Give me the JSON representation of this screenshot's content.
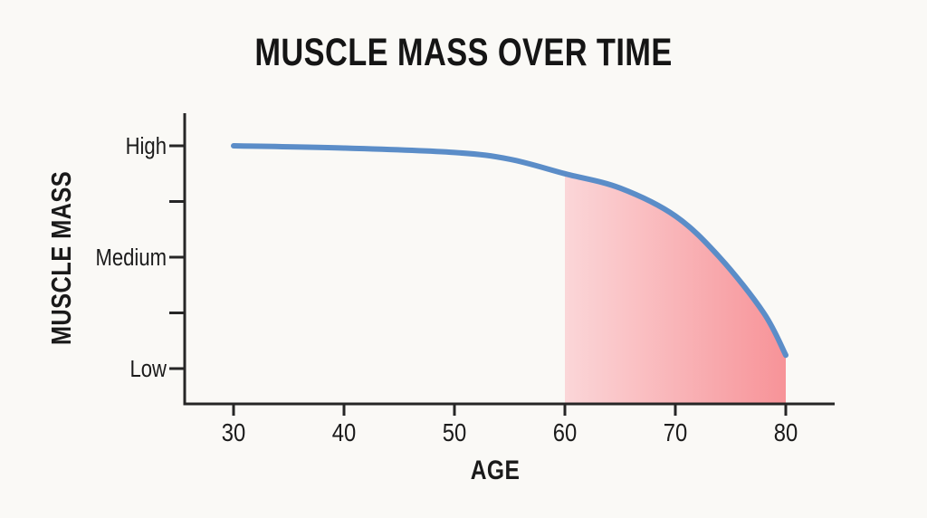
{
  "title": "MUSCLE MASS OVER TIME",
  "colors": {
    "background": "#faf9f6",
    "axis": "#262626",
    "text": "#1b1b1b",
    "curve": "#5b8dc8",
    "shade_left": "#fbd6d8",
    "shade_right": "#f79398"
  },
  "chart_data": {
    "type": "line",
    "title": "MUSCLE MASS OVER TIME",
    "xlabel": "AGE",
    "ylabel": "MUSCLE MASS",
    "x_ticks": [
      "30",
      "40",
      "50",
      "60",
      "70",
      "80"
    ],
    "y_ticks": [
      {
        "value": 3.0,
        "label": "High"
      },
      {
        "value": 2.5,
        "label": ""
      },
      {
        "value": 2.0,
        "label": "Medium"
      },
      {
        "value": 1.5,
        "label": ""
      },
      {
        "value": 1.0,
        "label": "Low"
      }
    ],
    "y_scale_note": "qualitative scale: Low=1, Medium=2, High=3",
    "xlim": [
      25.5,
      84.5
    ],
    "ylim": [
      0.68,
      3.3
    ],
    "grid": false,
    "legend": "none",
    "series": [
      {
        "name": "muscle mass",
        "color": "#5b8dc8",
        "x": [
          30,
          40,
          50,
          55,
          60,
          65,
          70,
          74,
          78,
          80
        ],
        "y": [
          3.0,
          2.98,
          2.94,
          2.88,
          2.75,
          2.62,
          2.37,
          2.0,
          1.5,
          1.12
        ]
      }
    ],
    "shaded_region": {
      "type": "area-under-curve",
      "x_start": 60,
      "x_end": 80,
      "gradient": [
        "#fbd6d8",
        "#f79398"
      ]
    }
  }
}
